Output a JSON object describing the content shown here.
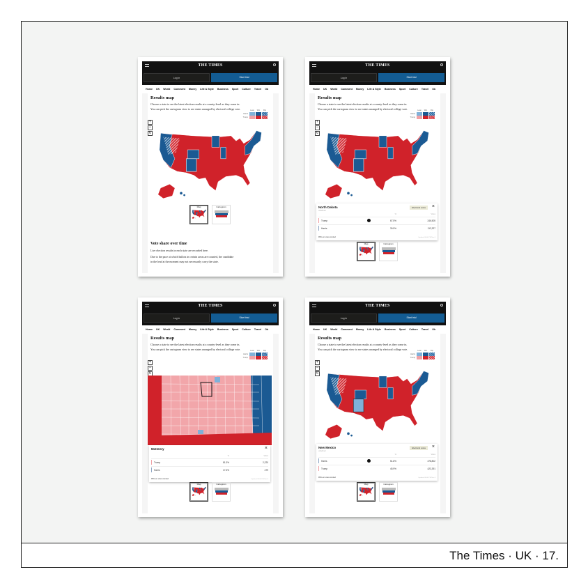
{
  "caption": "The Times · UK · 17.",
  "site": {
    "logo": "THE TIMES",
    "login": "Log in",
    "start_trial": "Start trial",
    "nav": [
      "Home",
      "UK",
      "World",
      "Comment",
      "Money",
      "Life & Style",
      "Business",
      "Sport",
      "Culture",
      "Travel",
      "Ob"
    ]
  },
  "results": {
    "title": "Results map",
    "desc1": "Choose a state to see the latest election results at a county-level as they come in.",
    "desc2": "You can pick the cartogram view to see states arranged by electoral college vote.",
    "legend": {
      "cols": [
        "Lean",
        "Win",
        "Flip"
      ],
      "rows": [
        "Harris",
        "Trump"
      ]
    },
    "zoom_in": "+",
    "zoom_out": "−",
    "reset": "↻",
    "toggle_map": "Map",
    "toggle_cartogram": "Cartogram"
  },
  "colors": {
    "harris": "#1b5a93",
    "harris_lean": "#7fb1d9",
    "trump": "#d0222a",
    "trump_lean": "#f0a1a5",
    "county_pink": "#f2a6aa"
  },
  "vote_share": {
    "title": "Vote share over time",
    "p1": "Live election results in each state are recorded here.",
    "p2a": "Due to the pace at which ballots in certain areas are counted, the candidate",
    "p2b": "in the lead at the moment may not necessarily carry the state."
  },
  "popups": [
    {
      "name": "North Dakota",
      "sub": "undefined",
      "badge": "Electoral votes",
      "pct_h": "%",
      "votes_h": "Votes",
      "rows": [
        {
          "cand": "Trump",
          "pct": "67.5%",
          "votes": "246,505",
          "winner": true
        },
        {
          "cand": "Harris",
          "pct": "30.5%",
          "votes": "112,327",
          "winner": false
        }
      ],
      "foot": "99% est. votes counted",
      "updated": "Updated 08:00 PM Nov 6"
    },
    {
      "name": "McHenry",
      "sub": "",
      "badge": "",
      "pct_h": "%",
      "votes_h": "Votes",
      "rows": [
        {
          "cand": "Trump",
          "pct": "81.3%",
          "votes": "2,220",
          "winner": false
        },
        {
          "cand": "Harris",
          "pct": "17.3%",
          "votes": "479",
          "winner": false
        }
      ],
      "foot": "99% est. votes counted",
      "updated": "Updated 08:00 PM Nov 6"
    },
    {
      "name": "New Mexico",
      "sub": "undefined",
      "badge": "Electoral votes",
      "pct_h": "%",
      "votes_h": "Votes",
      "rows": [
        {
          "cand": "Harris",
          "pct": "51.8%",
          "votes": "478,802",
          "winner": true
        },
        {
          "cand": "Trump",
          "pct": "45.9%",
          "votes": "423,391",
          "winner": false
        }
      ],
      "foot": "99% est. votes counted",
      "updated": "Updated 08:00 PM Nov 6"
    }
  ]
}
